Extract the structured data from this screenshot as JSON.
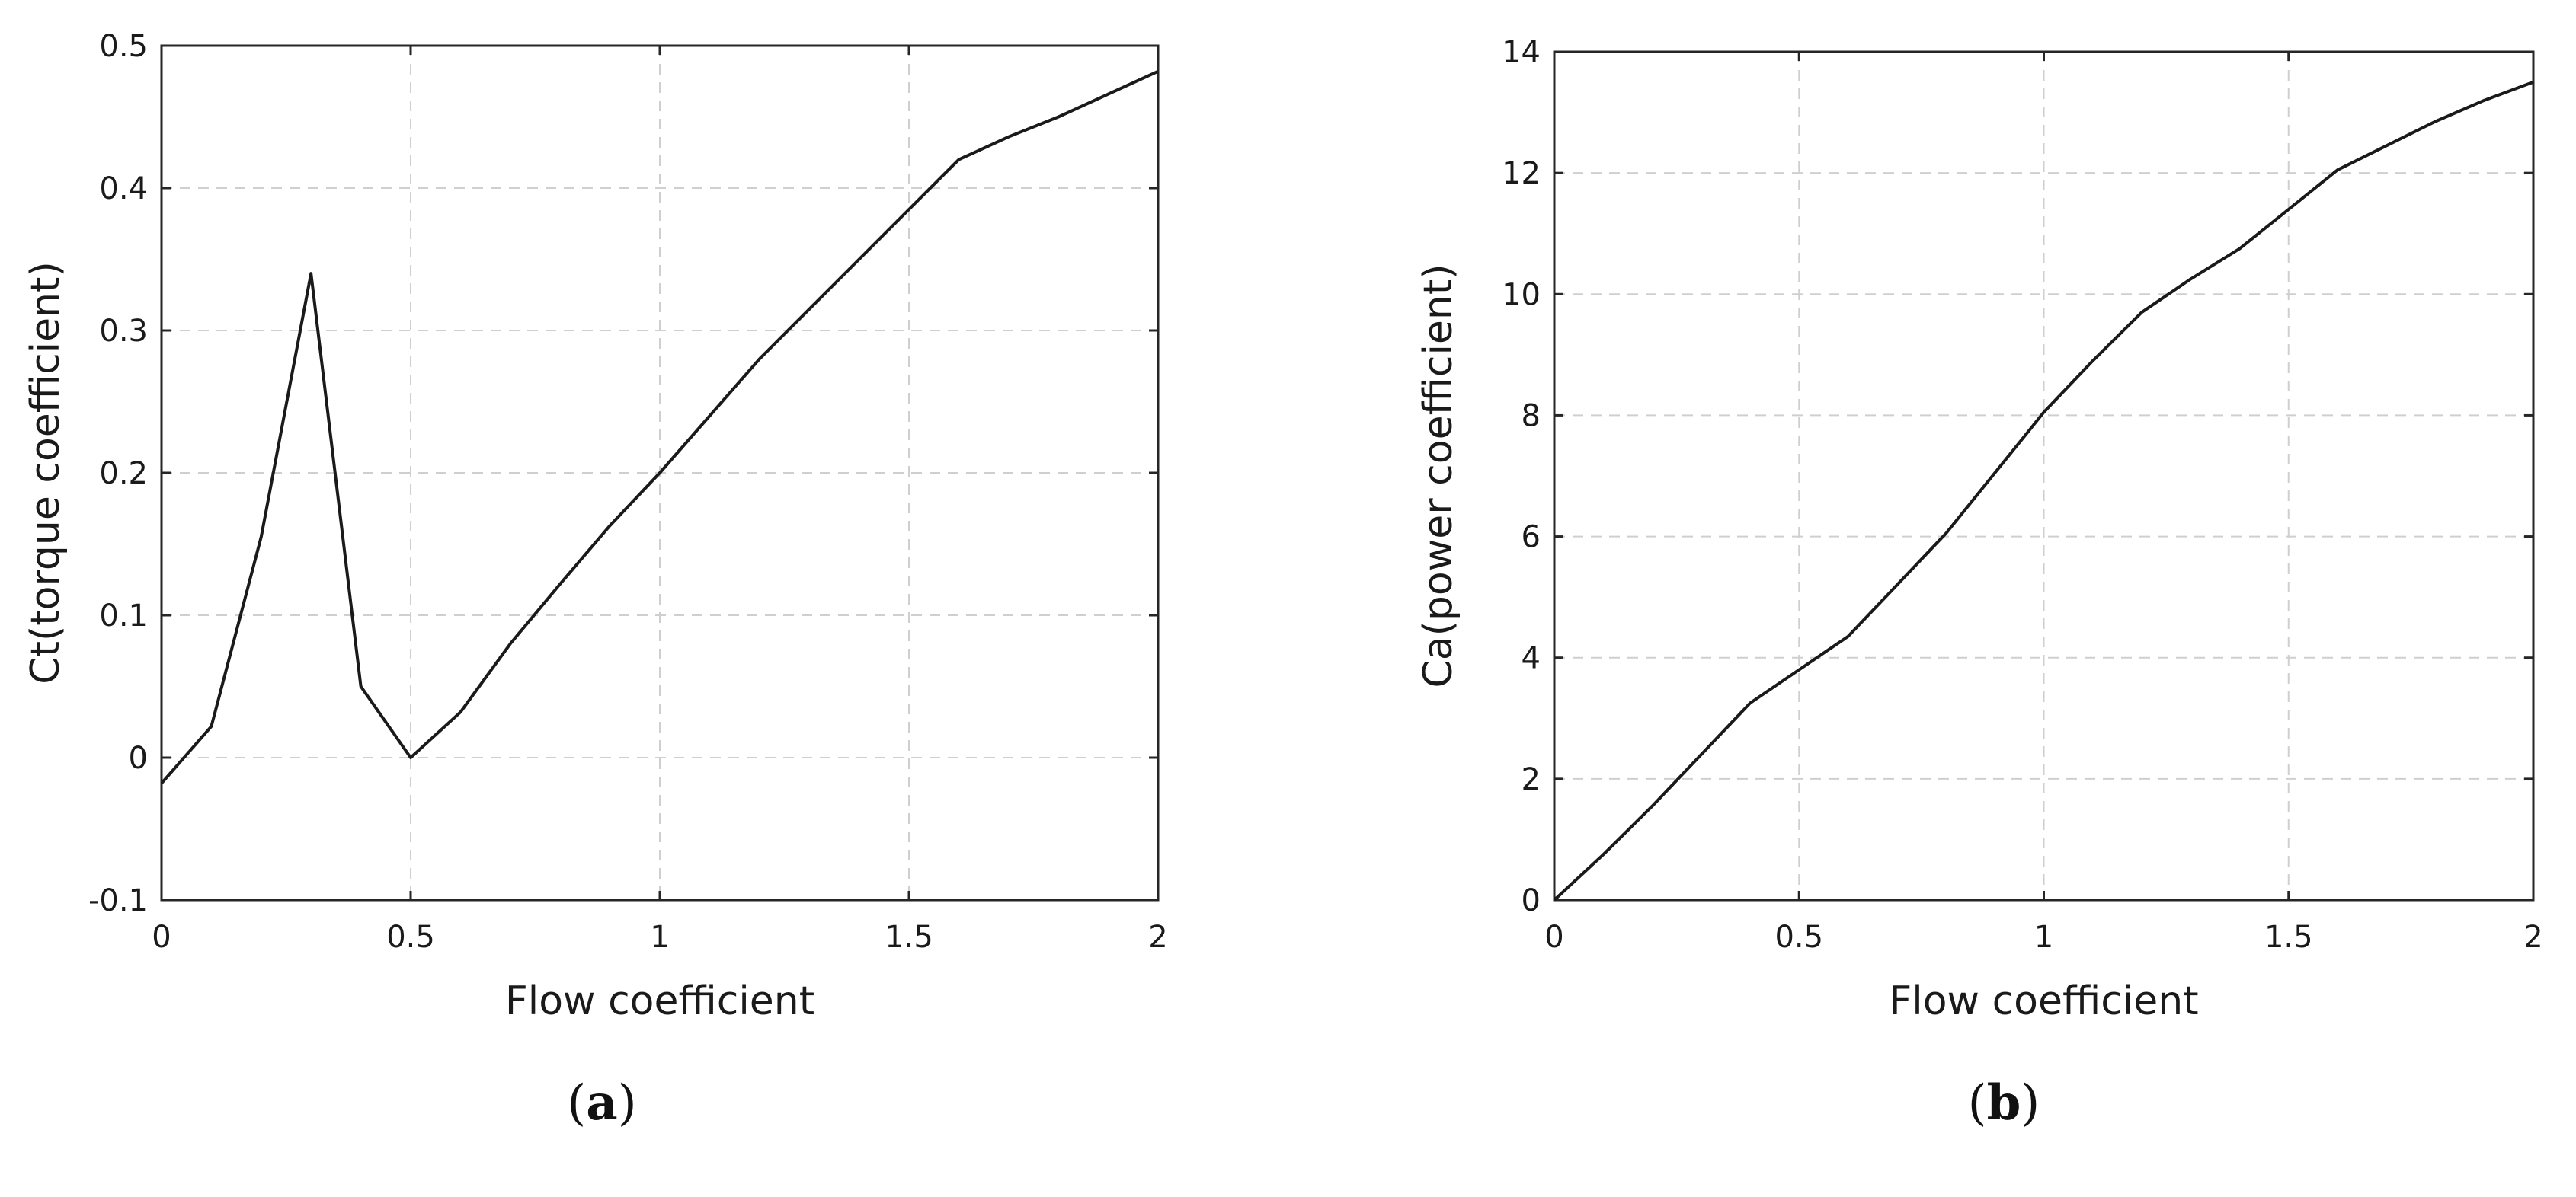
{
  "chart_data": [
    {
      "type": "line",
      "panel_label": "a",
      "xlabel": "Flow coefficient",
      "ylabel": "Ct(torque coefficient)",
      "xlim": [
        0,
        2
      ],
      "ylim": [
        -0.1,
        0.5
      ],
      "xticks": [
        0,
        0.5,
        1,
        1.5,
        2
      ],
      "xtick_labels": [
        "0",
        "0.5",
        "1",
        "1.5",
        "2"
      ],
      "yticks": [
        -0.1,
        0,
        0.1,
        0.2,
        0.3,
        0.4,
        0.5
      ],
      "ytick_labels": [
        "-0.1",
        "0",
        "0.1",
        "0.2",
        "0.3",
        "0.4",
        "0.5"
      ],
      "grid": true,
      "line_color": "#1a1a1a",
      "series": [
        {
          "x": [
            0,
            0.1,
            0.2,
            0.3,
            0.4,
            0.5,
            0.6,
            0.7,
            0.8,
            0.9,
            1.0,
            1.1,
            1.2,
            1.3,
            1.4,
            1.5,
            1.6,
            1.7,
            1.8,
            1.9,
            2.0
          ],
          "y": [
            -0.018,
            0.022,
            0.155,
            0.34,
            0.05,
            0.0,
            0.032,
            0.08,
            0.122,
            0.163,
            0.2,
            0.24,
            0.28,
            0.315,
            0.35,
            0.385,
            0.42,
            0.436,
            0.45,
            0.466,
            0.482
          ]
        }
      ]
    },
    {
      "type": "line",
      "panel_label": "b",
      "xlabel": "Flow coefficient",
      "ylabel": "Ca(power coefficient)",
      "xlim": [
        0,
        2
      ],
      "ylim": [
        0,
        14
      ],
      "xticks": [
        0,
        0.5,
        1,
        1.5,
        2
      ],
      "xtick_labels": [
        "0",
        "0.5",
        "1",
        "1.5",
        "2"
      ],
      "yticks": [
        0,
        2,
        4,
        6,
        8,
        10,
        12,
        14
      ],
      "ytick_labels": [
        "0",
        "2",
        "4",
        "6",
        "8",
        "10",
        "12",
        "14"
      ],
      "grid": true,
      "line_color": "#1a1a1a",
      "series": [
        {
          "x": [
            0,
            0.1,
            0.2,
            0.3,
            0.4,
            0.5,
            0.6,
            0.7,
            0.8,
            0.9,
            1.0,
            1.1,
            1.2,
            1.3,
            1.4,
            1.5,
            1.6,
            1.7,
            1.8,
            1.9,
            2.0
          ],
          "y": [
            0,
            0.75,
            1.55,
            2.4,
            3.25,
            3.8,
            4.35,
            5.2,
            6.05,
            7.05,
            8.05,
            8.9,
            9.7,
            10.25,
            10.75,
            11.4,
            12.05,
            12.45,
            12.85,
            13.2,
            13.5
          ]
        }
      ]
    }
  ]
}
